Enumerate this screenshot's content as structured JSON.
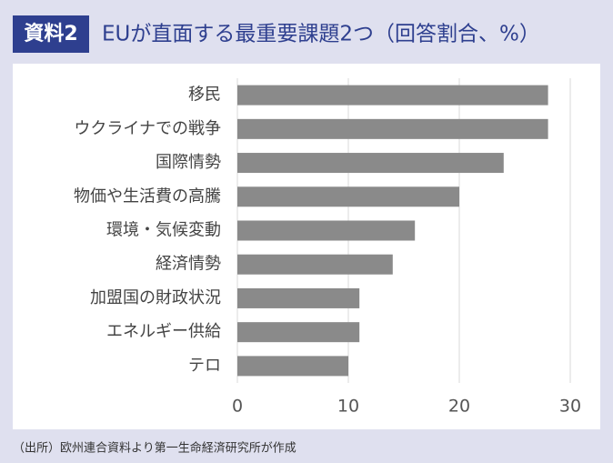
{
  "badge": "資料2",
  "source": "（出所）欧州連合資料より第一生命経済研究所が作成",
  "chart_data": {
    "type": "hbar",
    "title": "EUが直面する最重要課題2つ（回答割合、%）",
    "categories": [
      "移民",
      "ウクライナでの戦争",
      "国際情勢",
      "物価や生活費の高騰",
      "環境・気候変動",
      "経済情勢",
      "加盟国の財政状況",
      "エネルギー供給",
      "テロ"
    ],
    "values": [
      28,
      28,
      24,
      20,
      16,
      14,
      11,
      11,
      10
    ],
    "color": "#8a8a8a",
    "xlim": [
      0,
      30
    ],
    "xticks": [
      0,
      10,
      20,
      30
    ],
    "grid": true
  }
}
